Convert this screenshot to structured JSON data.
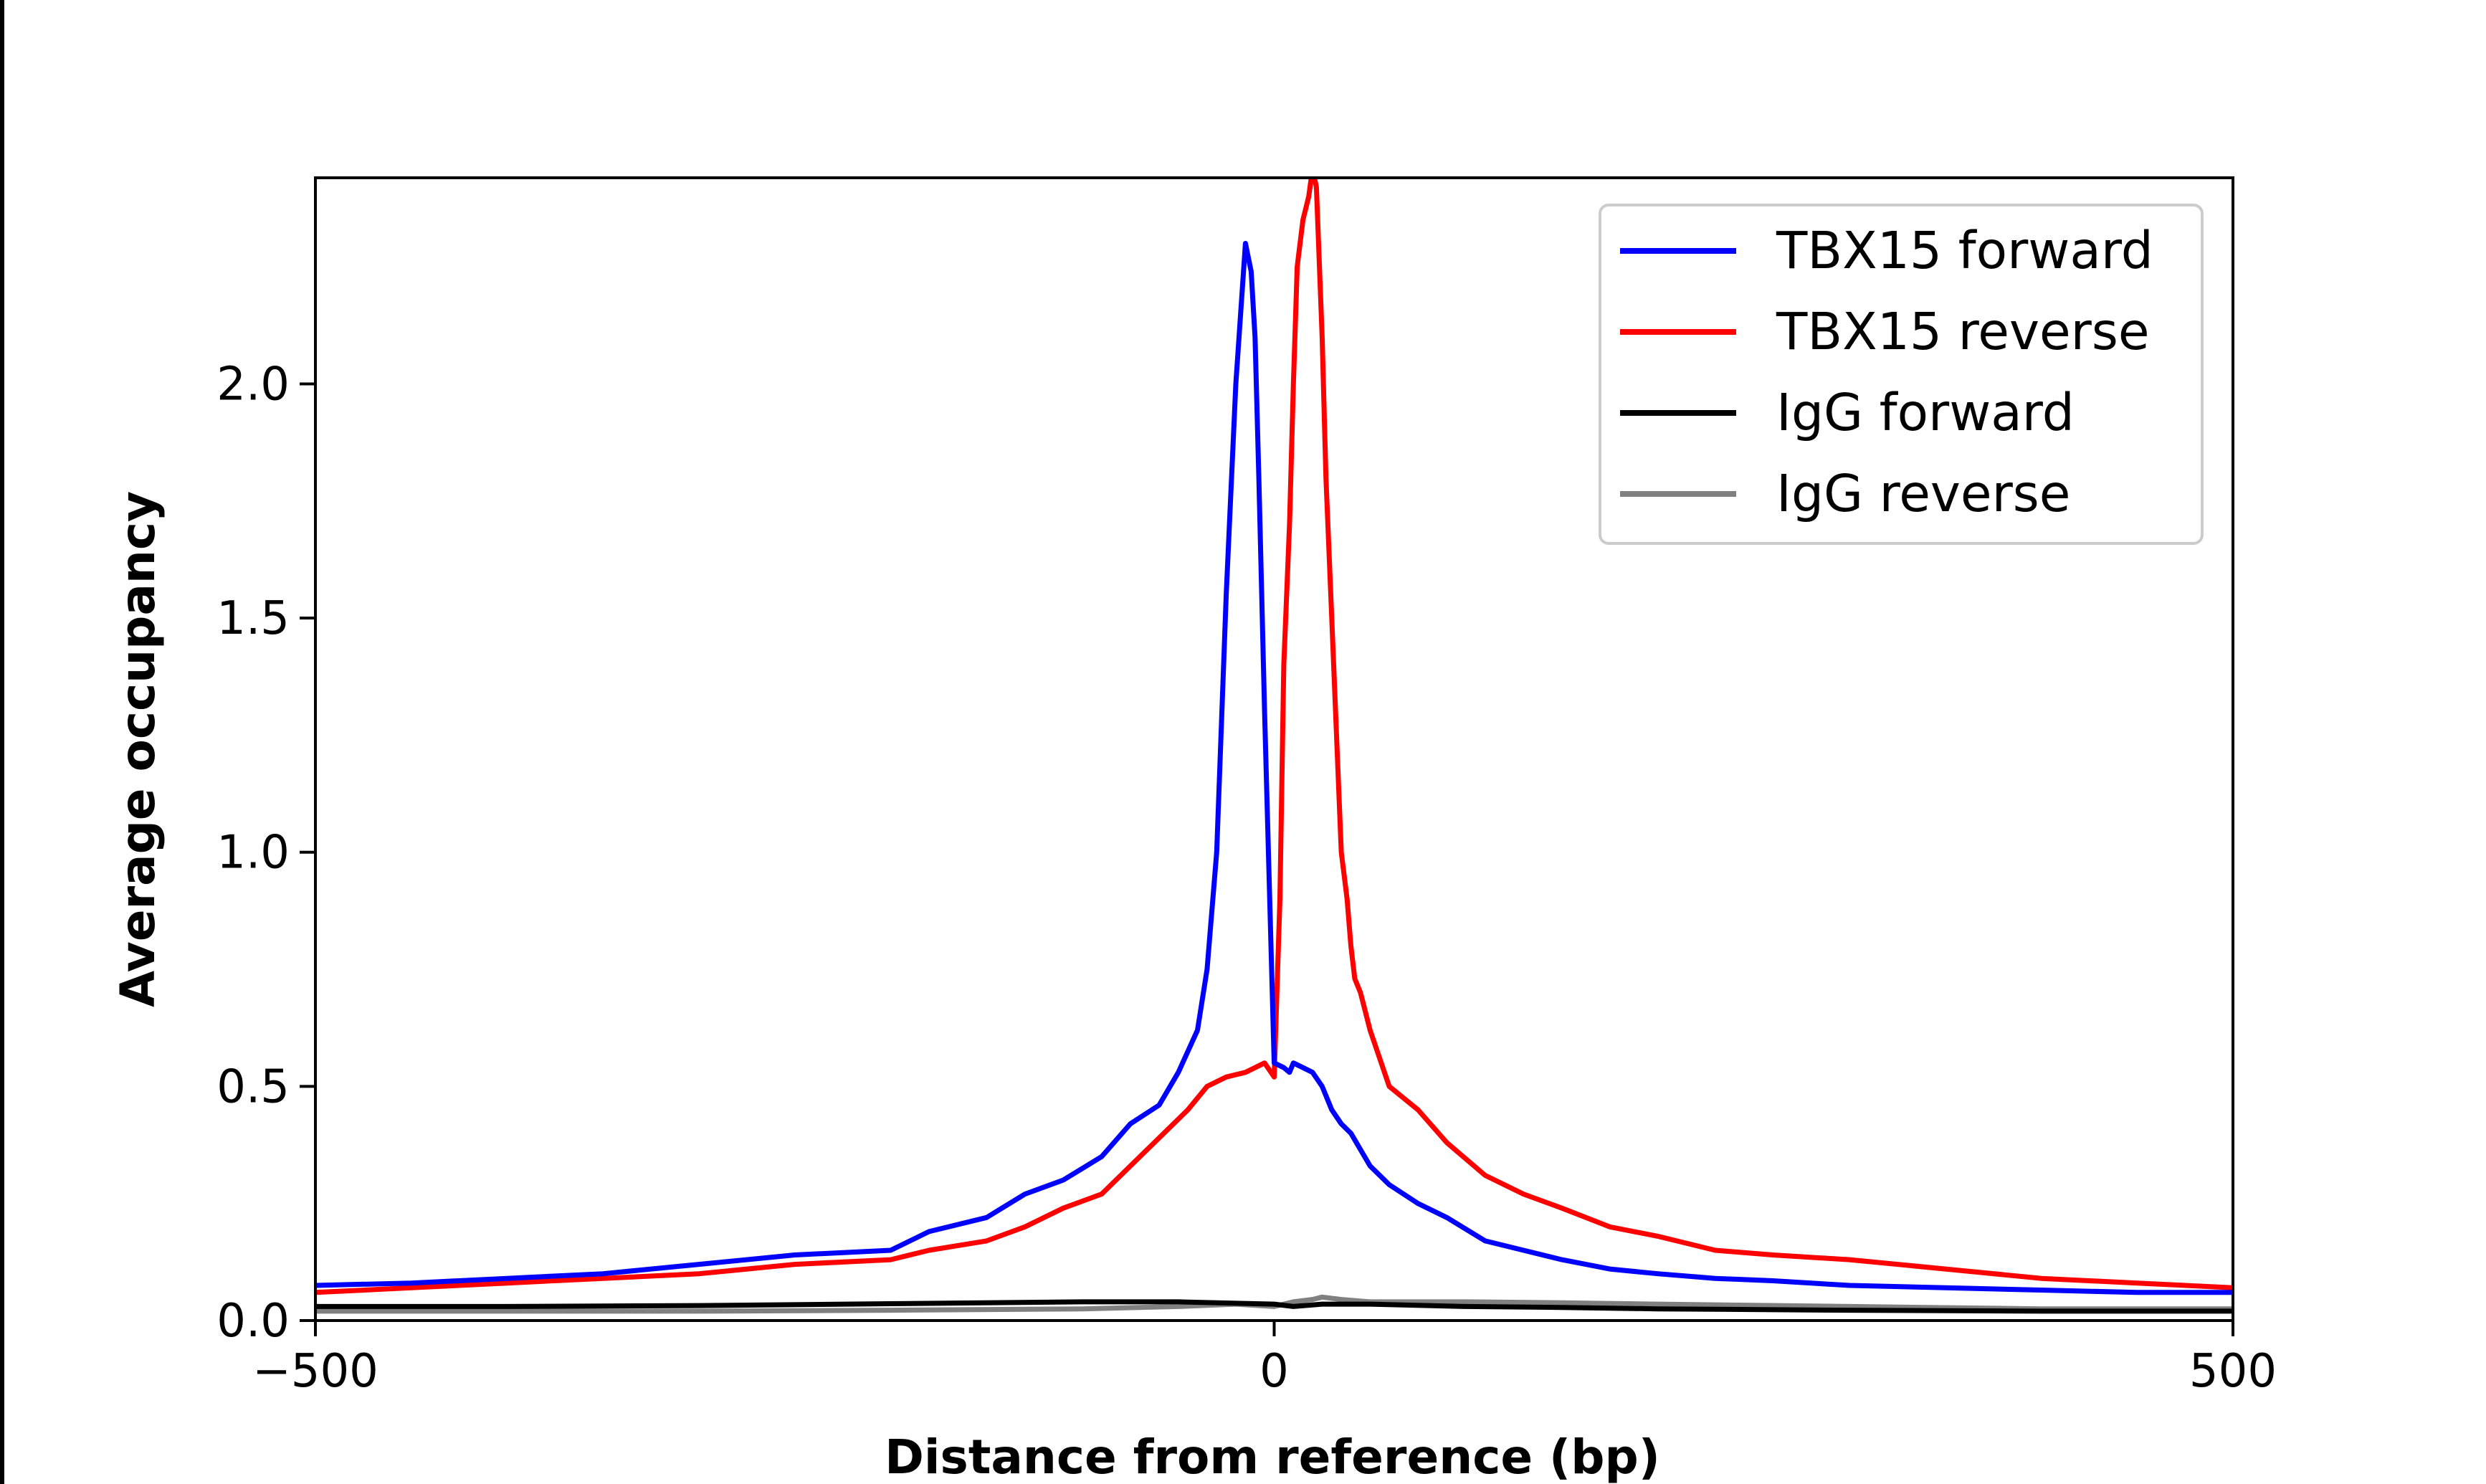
{
  "chart_data": {
    "type": "line",
    "xlabel": "Distance from reference (bp)",
    "ylabel": "Average occupancy",
    "xlim": [
      -500,
      500
    ],
    "ylim": [
      0,
      2.44
    ],
    "xticks": [
      -500,
      0,
      500
    ],
    "xtick_labels": [
      "−500",
      "0",
      "500"
    ],
    "yticks": [
      0.0,
      0.5,
      1.0,
      1.5,
      2.0
    ],
    "ytick_labels": [
      "0.0",
      "0.5",
      "1.0",
      "1.5",
      "2.0"
    ],
    "grid": false,
    "legend_position": "top-right",
    "series": [
      {
        "name": "TBX15 forward",
        "color": "#0000ff",
        "x": [
          -500,
          -450,
          -400,
          -350,
          -300,
          -250,
          -200,
          -180,
          -150,
          -130,
          -110,
          -90,
          -75,
          -60,
          -50,
          -40,
          -35,
          -30,
          -25,
          -20,
          -15,
          -12,
          -10,
          -8,
          -5,
          0,
          5,
          8,
          10,
          15,
          20,
          25,
          30,
          35,
          40,
          50,
          60,
          75,
          90,
          110,
          130,
          150,
          175,
          200,
          230,
          260,
          300,
          350,
          400,
          450,
          500
        ],
        "y": [
          0.075,
          0.08,
          0.09,
          0.1,
          0.12,
          0.14,
          0.15,
          0.19,
          0.22,
          0.27,
          0.3,
          0.35,
          0.42,
          0.46,
          0.53,
          0.62,
          0.75,
          1.0,
          1.55,
          2.0,
          2.3,
          2.24,
          2.1,
          1.8,
          1.3,
          0.55,
          0.54,
          0.53,
          0.55,
          0.54,
          0.53,
          0.5,
          0.45,
          0.42,
          0.4,
          0.33,
          0.29,
          0.25,
          0.22,
          0.17,
          0.15,
          0.13,
          0.11,
          0.1,
          0.09,
          0.085,
          0.075,
          0.07,
          0.065,
          0.06,
          0.06
        ]
      },
      {
        "name": "TBX15 reverse",
        "color": "#ff0000",
        "x": [
          -500,
          -450,
          -400,
          -350,
          -300,
          -250,
          -200,
          -180,
          -150,
          -130,
          -110,
          -90,
          -75,
          -60,
          -45,
          -35,
          -25,
          -15,
          -5,
          0,
          3,
          5,
          8,
          10,
          12,
          15,
          18,
          20,
          22,
          25,
          27,
          30,
          33,
          35,
          38,
          40,
          42,
          45,
          50,
          60,
          75,
          90,
          110,
          130,
          150,
          175,
          200,
          230,
          260,
          300,
          350,
          400,
          450,
          500
        ],
        "y": [
          0.06,
          0.07,
          0.08,
          0.09,
          0.1,
          0.12,
          0.13,
          0.15,
          0.17,
          0.2,
          0.24,
          0.27,
          0.33,
          0.39,
          0.45,
          0.5,
          0.52,
          0.53,
          0.55,
          0.52,
          0.9,
          1.4,
          1.7,
          2.0,
          2.25,
          2.35,
          2.4,
          2.46,
          2.42,
          2.1,
          1.8,
          1.5,
          1.2,
          1.0,
          0.9,
          0.8,
          0.73,
          0.7,
          0.62,
          0.5,
          0.45,
          0.38,
          0.31,
          0.27,
          0.24,
          0.2,
          0.18,
          0.15,
          0.14,
          0.13,
          0.11,
          0.09,
          0.08,
          0.07
        ]
      },
      {
        "name": "IgG forward",
        "color": "#000000",
        "x": [
          -500,
          -400,
          -300,
          -200,
          -100,
          -50,
          0,
          10,
          25,
          50,
          100,
          150,
          200,
          300,
          400,
          500
        ],
        "y": [
          0.03,
          0.03,
          0.032,
          0.036,
          0.04,
          0.04,
          0.035,
          0.03,
          0.035,
          0.035,
          0.03,
          0.028,
          0.025,
          0.022,
          0.02,
          0.02
        ]
      },
      {
        "name": "IgG reverse",
        "color": "#808080",
        "x": [
          -500,
          -400,
          -300,
          -200,
          -100,
          -50,
          -20,
          0,
          10,
          20,
          25,
          35,
          50,
          100,
          150,
          200,
          300,
          400,
          500
        ],
        "y": [
          0.02,
          0.02,
          0.02,
          0.022,
          0.025,
          0.03,
          0.035,
          0.03,
          0.04,
          0.045,
          0.05,
          0.045,
          0.04,
          0.04,
          0.038,
          0.035,
          0.03,
          0.025,
          0.025
        ]
      }
    ]
  }
}
